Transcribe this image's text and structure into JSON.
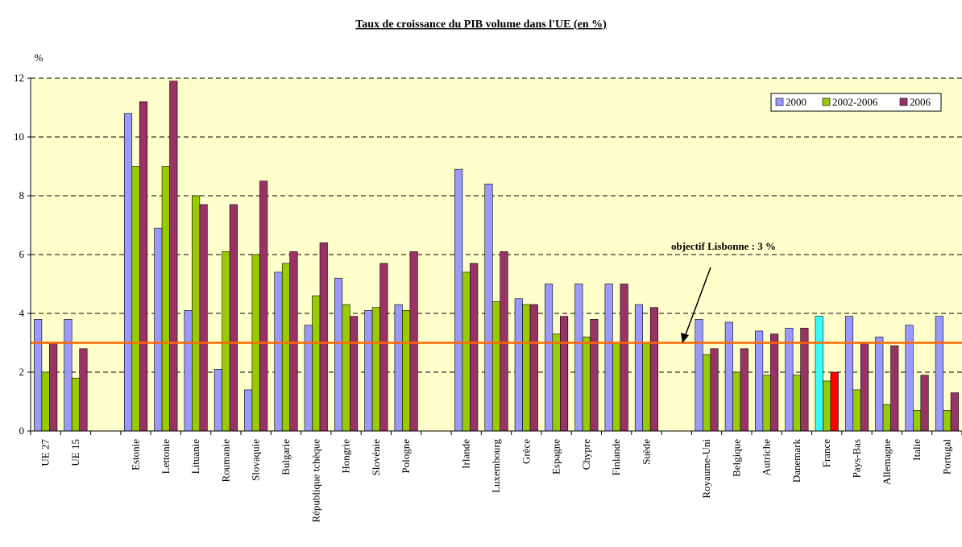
{
  "chart_data": {
    "type": "bar",
    "title": "Taux de croissance du PIB volume dans l'UE (en %)",
    "y_label": "%",
    "categories": [
      "UE 27",
      "UE 15",
      null,
      "Estonie",
      "Lettonie",
      "Lituanie",
      "Roumanie",
      "Slovaquie",
      "Bulgarie",
      "République tchèque",
      "Hongrie",
      "Slovénie",
      "Pologne",
      null,
      "Irlande",
      "Luxembourg",
      "Grèce",
      "Espagne",
      "Chypre",
      "Finlande",
      "Suède",
      null,
      "Royaume-Uni",
      "Belgique",
      "Autriche",
      "Danemark",
      "France",
      "Pays-Bas",
      "Allemagne",
      "Italie",
      "Portugal"
    ],
    "series": [
      {
        "name": "2000",
        "color": "#9999ff",
        "point_colors": {
          "26": "#33ffff"
        },
        "values": [
          3.8,
          3.8,
          null,
          10.8,
          6.9,
          4.1,
          2.1,
          1.4,
          5.4,
          3.6,
          5.2,
          4.1,
          4.3,
          null,
          8.9,
          8.4,
          4.5,
          5.0,
          5.0,
          5.0,
          4.3,
          null,
          3.8,
          3.7,
          3.4,
          3.5,
          3.9,
          3.9,
          3.2,
          3.6,
          3.9
        ]
      },
      {
        "name": "2002-2006",
        "color": "#99cc00",
        "point_colors": {
          "26": "#99cc00"
        },
        "values": [
          2.0,
          1.8,
          null,
          9.0,
          9.0,
          8.0,
          6.1,
          6.0,
          5.7,
          4.6,
          4.3,
          4.2,
          4.1,
          null,
          5.4,
          4.4,
          4.3,
          3.3,
          3.2,
          3.0,
          3.0,
          null,
          2.6,
          2.0,
          1.9,
          1.9,
          1.7,
          1.4,
          0.9,
          0.7,
          0.7
        ]
      },
      {
        "name": "2006",
        "color": "#993366",
        "point_colors": {
          "26": "#ff0000"
        },
        "values": [
          3.0,
          2.8,
          null,
          11.2,
          11.9,
          7.7,
          7.7,
          8.5,
          6.1,
          6.4,
          3.9,
          5.7,
          6.1,
          null,
          5.7,
          6.1,
          4.3,
          3.9,
          3.8,
          5.0,
          4.2,
          null,
          2.8,
          2.8,
          3.3,
          3.5,
          2.0,
          3.0,
          2.9,
          1.9,
          1.3
        ]
      }
    ],
    "ylim": [
      0,
      12
    ],
    "yticks": [
      0,
      2,
      4,
      6,
      8,
      10,
      12
    ],
    "grid": true,
    "legend": "top-right",
    "reference_line": {
      "value": 3,
      "color": "#ff6600",
      "label": "objectif Lisbonne : 3 %"
    }
  }
}
